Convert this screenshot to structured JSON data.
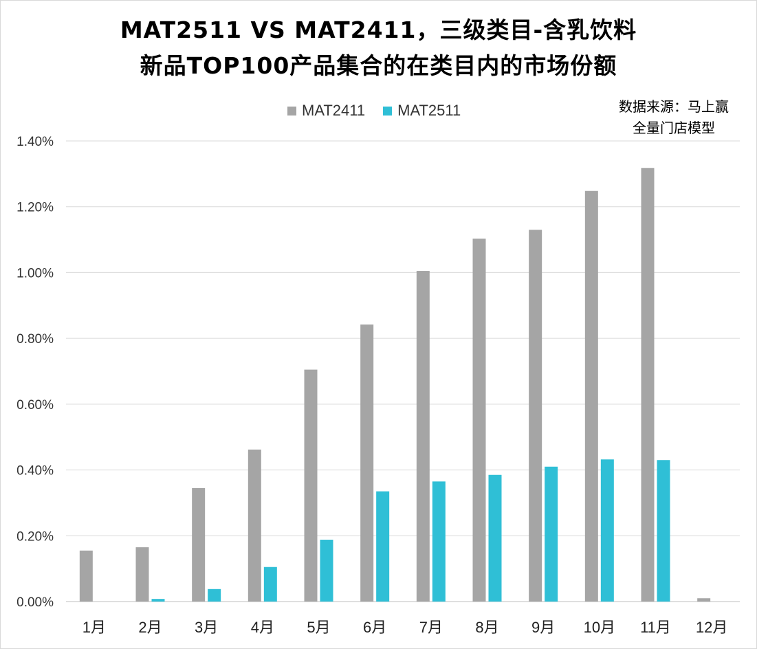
{
  "chart_data": {
    "type": "bar",
    "title": "MAT2511 VS MAT2411，三级类目-含乳饮料",
    "subtitle": "新品TOP100产品集合的在类目内的市场份额",
    "source_note": [
      "数据来源：马上赢",
      "全量门店模型"
    ],
    "categories": [
      "1月",
      "2月",
      "3月",
      "4月",
      "5月",
      "6月",
      "7月",
      "8月",
      "9月",
      "10月",
      "11月",
      "12月"
    ],
    "series": [
      {
        "name": "MAT2411",
        "color": "#a5a5a5",
        "values": [
          0.155,
          0.165,
          0.345,
          0.462,
          0.705,
          0.842,
          1.005,
          1.103,
          1.13,
          1.248,
          1.318,
          0.01
        ]
      },
      {
        "name": "MAT2511",
        "color": "#2fbfd6",
        "values": [
          0.0,
          0.008,
          0.038,
          0.105,
          0.188,
          0.335,
          0.365,
          0.385,
          0.41,
          0.432,
          0.43,
          0.0
        ]
      }
    ],
    "ylim": [
      0,
      1.4
    ],
    "yticks": [
      "0.00%",
      "0.20%",
      "0.40%",
      "0.60%",
      "0.80%",
      "1.00%",
      "1.20%",
      "1.40%"
    ],
    "ytick_values": [
      0,
      0.2,
      0.4,
      0.6,
      0.8,
      1.0,
      1.2,
      1.4
    ],
    "y_format": "percent",
    "grid": true,
    "legend_position": "top-center"
  }
}
